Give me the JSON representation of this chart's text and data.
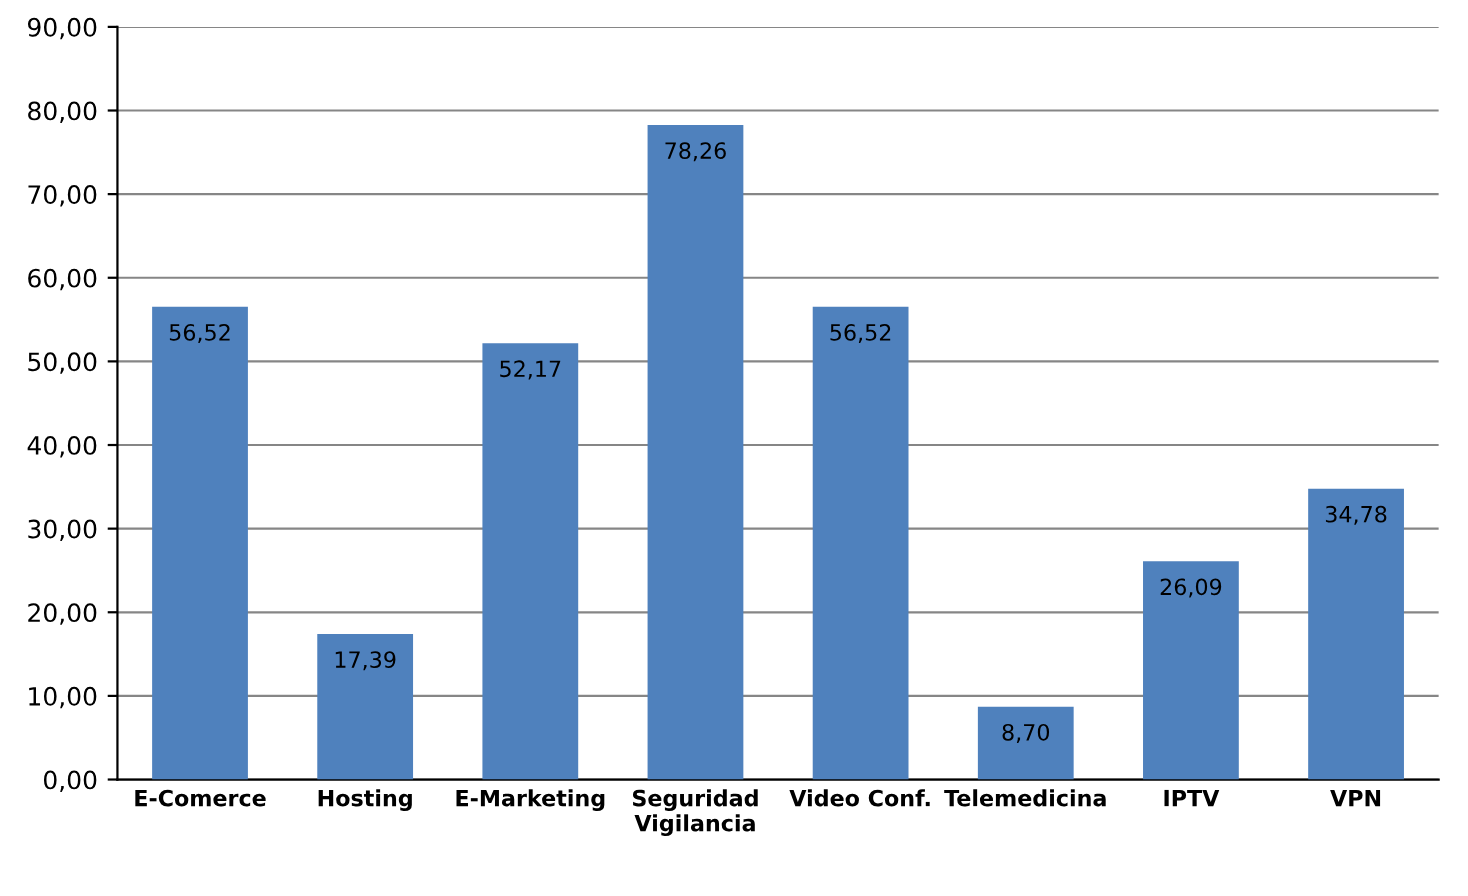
{
  "chart_data": {
    "type": "bar",
    "categories": [
      "E-Comerce",
      "Hosting",
      "E-Marketing",
      "Seguridad\nVigilancia",
      "Video Conf.",
      "Telemedicina",
      "IPTV",
      "VPN"
    ],
    "values": [
      56.52,
      17.39,
      52.17,
      78.26,
      56.52,
      8.7,
      26.09,
      34.78
    ],
    "value_labels": [
      "56,52",
      "17,39",
      "52,17",
      "78,26",
      "56,52",
      "8,70",
      "26,09",
      "34,78"
    ],
    "color": "#4f81bd",
    "ylim": [
      0,
      90
    ],
    "yticks": [
      {
        "value": 0,
        "label": "0,00"
      },
      {
        "value": 10,
        "label": "10,00"
      },
      {
        "value": 20,
        "label": "20,00"
      },
      {
        "value": 30,
        "label": "30,00"
      },
      {
        "value": 40,
        "label": "40,00"
      },
      {
        "value": 50,
        "label": "50,00"
      },
      {
        "value": 60,
        "label": "60,00"
      },
      {
        "value": 70,
        "label": "70,00"
      },
      {
        "value": 80,
        "label": "80,00"
      },
      {
        "value": 90,
        "label": "90,00"
      }
    ],
    "grid": "y"
  }
}
